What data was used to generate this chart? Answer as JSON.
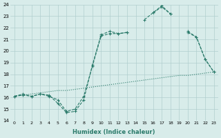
{
  "xlabel": "Humidex (Indice chaleur)",
  "x": [
    0,
    1,
    2,
    3,
    4,
    5,
    6,
    7,
    8,
    9,
    10,
    11,
    12,
    13,
    14,
    15,
    16,
    17,
    18,
    19,
    20,
    21,
    22,
    23
  ],
  "line_max": [
    16.1,
    16.3,
    16.1,
    16.3,
    16.2,
    15.5,
    14.7,
    14.8,
    15.8,
    18.8,
    21.4,
    21.7,
    21.5,
    21.6,
    null,
    null,
    23.3,
    23.8,
    23.2,
    null,
    21.6,
    21.2,
    19.3,
    18.2
  ],
  "line_mean": [
    16.1,
    16.2,
    16.1,
    16.3,
    16.1,
    15.8,
    14.8,
    15.0,
    16.1,
    18.7,
    21.3,
    21.5,
    21.5,
    21.6,
    null,
    22.7,
    23.3,
    23.9,
    23.2,
    null,
    21.7,
    21.2,
    19.3,
    18.2
  ],
  "line_straight": [
    16.1,
    16.2,
    16.3,
    16.4,
    16.5,
    16.6,
    16.6,
    16.7,
    16.8,
    16.9,
    17.0,
    17.1,
    17.2,
    17.3,
    17.4,
    17.5,
    17.6,
    17.7,
    17.8,
    17.9,
    17.9,
    18.0,
    18.1,
    18.2
  ],
  "bg_color": "#d8ecea",
  "grid_color": "#b0cece",
  "line_color": "#2a7a6a",
  "ylim": [
    14,
    24
  ],
  "yticks": [
    14,
    15,
    16,
    17,
    18,
    19,
    20,
    21,
    22,
    23,
    24
  ],
  "xticks": [
    0,
    1,
    2,
    3,
    4,
    5,
    6,
    7,
    8,
    9,
    10,
    11,
    12,
    13,
    14,
    15,
    16,
    17,
    18,
    19,
    20,
    21,
    22,
    23
  ]
}
